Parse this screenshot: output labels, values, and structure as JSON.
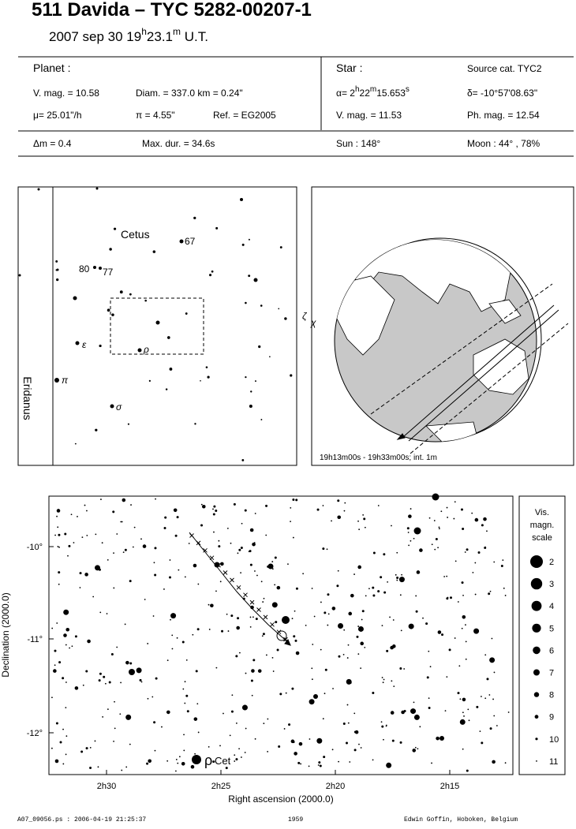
{
  "header": {
    "title": "511 Davida  –  TYC 5282-00207-1",
    "date": "2007 sep 30  19",
    "date_h": "h",
    "date_min": "23.1",
    "date_m": "m",
    "date_ut": " U.T."
  },
  "planet": {
    "label": "Planet :",
    "vmag": "V. mag. = 10.58",
    "diam": "Diam. = 337.0 km = 0.24\"",
    "mu": "μ=  25.01\"/h",
    "pi": "π =  4.55\"",
    "ref": "Ref. = EG2005"
  },
  "star": {
    "label": "Star :",
    "source": "Source cat.  TYC2",
    "alpha": "α=  2",
    "alpha_h": "h",
    "alpha_min": "22",
    "alpha_m": "m",
    "alpha_sec": "15.653",
    "alpha_s": "s",
    "delta": "δ= -10°57'08.63\"",
    "vmag": "V. mag. = 11.53",
    "phmag": "Ph. mag. = 12.54"
  },
  "conditions": {
    "dm": "Δm = 0.4",
    "maxdur": "Max. dur. = 34.6s",
    "sun": "Sun : 148°",
    "moon": "Moon :  44° , 78%"
  },
  "finder": {
    "constellation": "Cetus",
    "other_constellation": "Eridanus",
    "labels": [
      "67",
      "80",
      "77",
      "ε",
      "ρ",
      "π",
      "σ",
      "ζ",
      "χ"
    ]
  },
  "globe": {
    "caption": "19h13m00s - 19h33m00s; int.  1m"
  },
  "skymap": {
    "yticks": [
      "-10°",
      "-11°",
      "-12°"
    ],
    "xticks": [
      "2h30",
      "2h25",
      "2h20",
      "2h15"
    ],
    "xlabel": "Right ascension (2000.0)",
    "ylabel": "Declination (2000.0)",
    "star_name": "ρ",
    "star_con": "Cet"
  },
  "legend": {
    "title": [
      "Vis.",
      "magn.",
      "scale"
    ],
    "mags": [
      "2",
      "3",
      "4",
      "5",
      "6",
      "7",
      "8",
      "9",
      "10",
      "11"
    ]
  },
  "footer": {
    "file": "A07_09056.ps : 2006-04-19 21:25:37",
    "number": "1959",
    "author": "Edwin Goffin, Hoboken, Belgium"
  }
}
